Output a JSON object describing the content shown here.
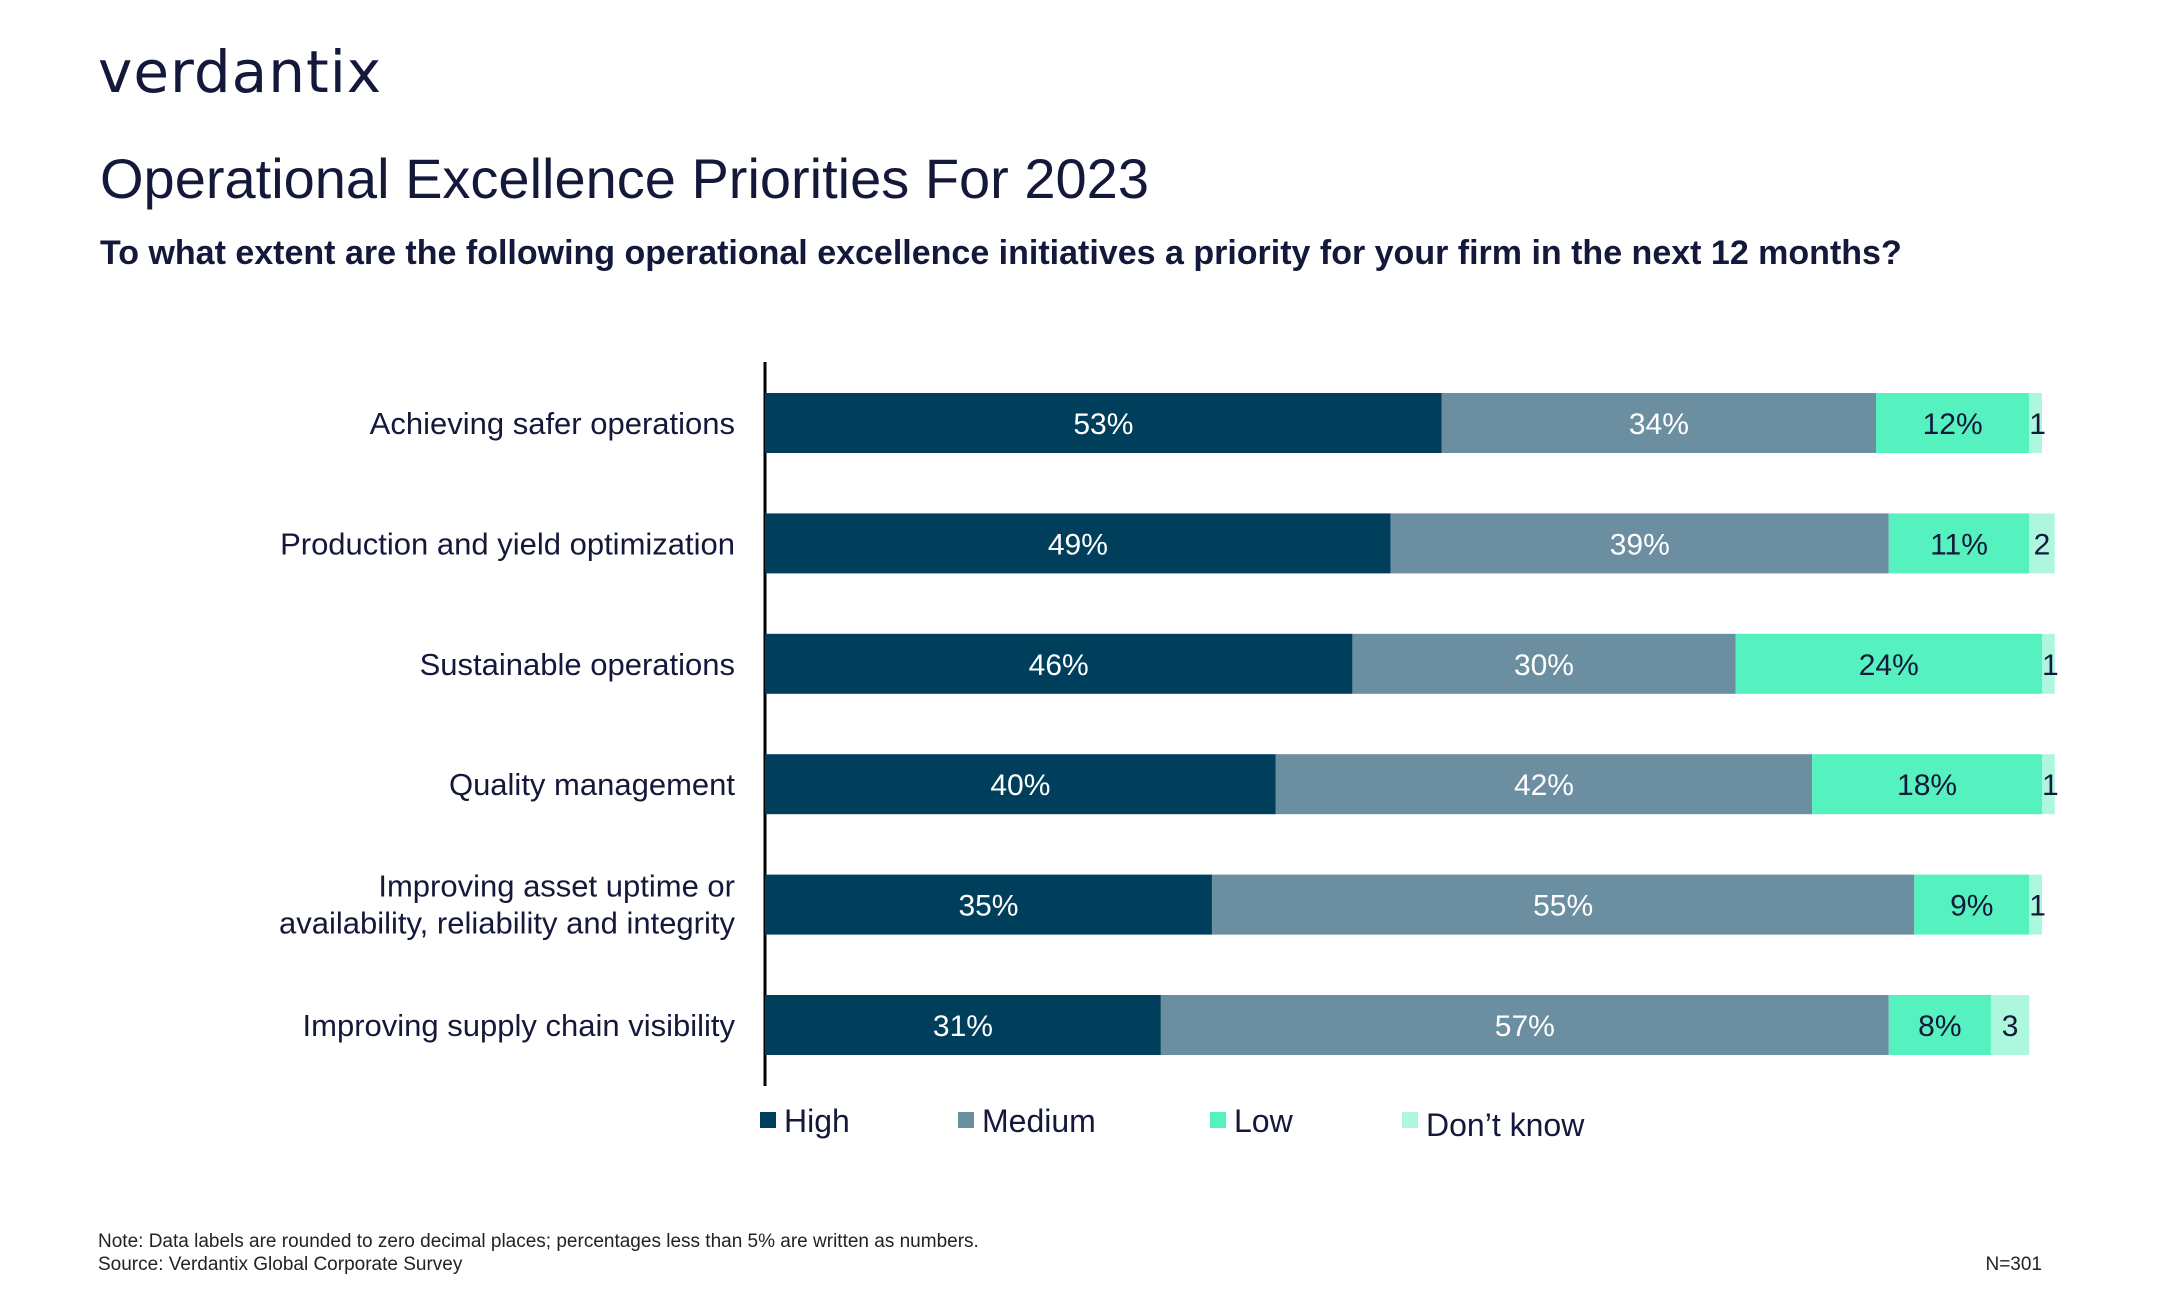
{
  "brand": {
    "logo_text": "verdantix"
  },
  "header": {
    "title": "Operational Excellence Priorities For 2023",
    "subtitle": "To what extent are the following operational excellence initiatives a priority for your firm in the next 12 months?"
  },
  "chart_data": {
    "type": "bar",
    "orientation": "horizontal",
    "stacked": true,
    "categories": [
      "Achieving safer operations",
      "Production and yield optimization",
      "Sustainable operations",
      "Quality management",
      "Improving asset uptime or availability, reliability and integrity",
      "Improving supply chain visibility"
    ],
    "series": [
      {
        "name": "High",
        "color": "#003f5c",
        "values": [
          53,
          49,
          46,
          40,
          35,
          31
        ],
        "labels": [
          "53%",
          "49%",
          "46%",
          "40%",
          "35%",
          "31%"
        ]
      },
      {
        "name": "Medium",
        "color": "#6b8ea0",
        "values": [
          34,
          39,
          30,
          42,
          55,
          57
        ],
        "labels": [
          "34%",
          "39%",
          "30%",
          "42%",
          "55%",
          "57%"
        ]
      },
      {
        "name": "Low",
        "color": "#55f2c0",
        "values": [
          12,
          11,
          24,
          18,
          9,
          8
        ],
        "labels": [
          "12%",
          "11%",
          "24%",
          "18%",
          "9%",
          "8%"
        ]
      },
      {
        "name": "Don’t know",
        "color": "#aef7df",
        "values": [
          1,
          2,
          1,
          1,
          1,
          3
        ],
        "labels": [
          "1",
          "2",
          "1",
          "1",
          "1",
          "3"
        ]
      }
    ],
    "xlim": [
      0,
      100
    ],
    "legend_position": "bottom"
  },
  "footer": {
    "note": "Note: Data labels are rounded to zero decimal places; percentages less than 5% are written as numbers.",
    "source": "Source: Verdantix Global Corporate Survey",
    "n": "N=301"
  }
}
